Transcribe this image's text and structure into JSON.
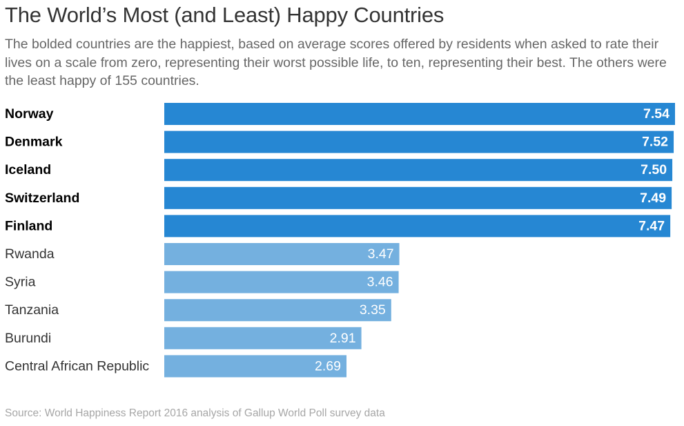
{
  "chart_data": {
    "type": "bar",
    "orientation": "horizontal",
    "title": "The World’s Most (and Least) Happy Countries",
    "subtitle": "The bolded countries are the happiest, based on average scores offered by residents when asked to rate their lives on a scale from zero, representing their worst possible life, to ten, representing their best. The others were the least happy of 155 countries.",
    "categories": [
      "Norway",
      "Denmark",
      "Iceland",
      "Switzerland",
      "Finland",
      "Rwanda",
      "Syria",
      "Tanzania",
      "Burundi",
      "Central African Republic"
    ],
    "values": [
      7.54,
      7.52,
      7.5,
      7.49,
      7.47,
      3.47,
      3.46,
      3.35,
      2.91,
      2.69
    ],
    "value_labels": [
      "7.54",
      "7.52",
      "7.50",
      "7.49",
      "7.47",
      "3.47",
      "3.46",
      "3.35",
      "2.91",
      "2.69"
    ],
    "groups": [
      "happiest",
      "happiest",
      "happiest",
      "happiest",
      "happiest",
      "least",
      "least",
      "least",
      "least",
      "least"
    ],
    "xlim": [
      0,
      7.54
    ],
    "xlabel": "",
    "ylabel": "",
    "grid": false,
    "colors": {
      "happiest": "#2687d3",
      "least": "#74b0df",
      "label_bold": "#000000",
      "label_normal": "#333333",
      "value_text": "#ffffff"
    },
    "source": "Source: World Happiness Report 2016 analysis of Gallup World Poll survey data"
  }
}
